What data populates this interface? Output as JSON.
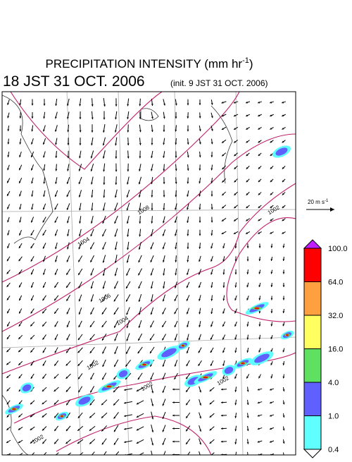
{
  "header": {
    "title": "PRECIPITATION INTENSITY (mm hr",
    "title_exponent": "-1",
    "title_end": ")",
    "valid_time": "18 JST 31 OCT. 2006",
    "init_time": "(init. 9 JST 31 OCT. 2006)"
  },
  "legend": {
    "vector_label": "20 m s",
    "vector_exponent": "-1",
    "colorbar": [
      {
        "label": "100.0",
        "color": "#ff0000"
      },
      {
        "label": "64.0",
        "color": "#ffa040"
      },
      {
        "label": "32.0",
        "color": "#ffff60"
      },
      {
        "label": "16.0",
        "color": "#60e060"
      },
      {
        "label": "4.0",
        "color": "#6060ff"
      },
      {
        "label": "1.0",
        "color": "#60ffff"
      },
      {
        "label": "0.4",
        "color": "#ffffff"
      }
    ],
    "top_color": "#c020ff"
  },
  "map": {
    "contour_labels": [
      "1002",
      "1004",
      "1006",
      "1008",
      "1004",
      "1002",
      "1002",
      "1002",
      "1002"
    ]
  }
}
